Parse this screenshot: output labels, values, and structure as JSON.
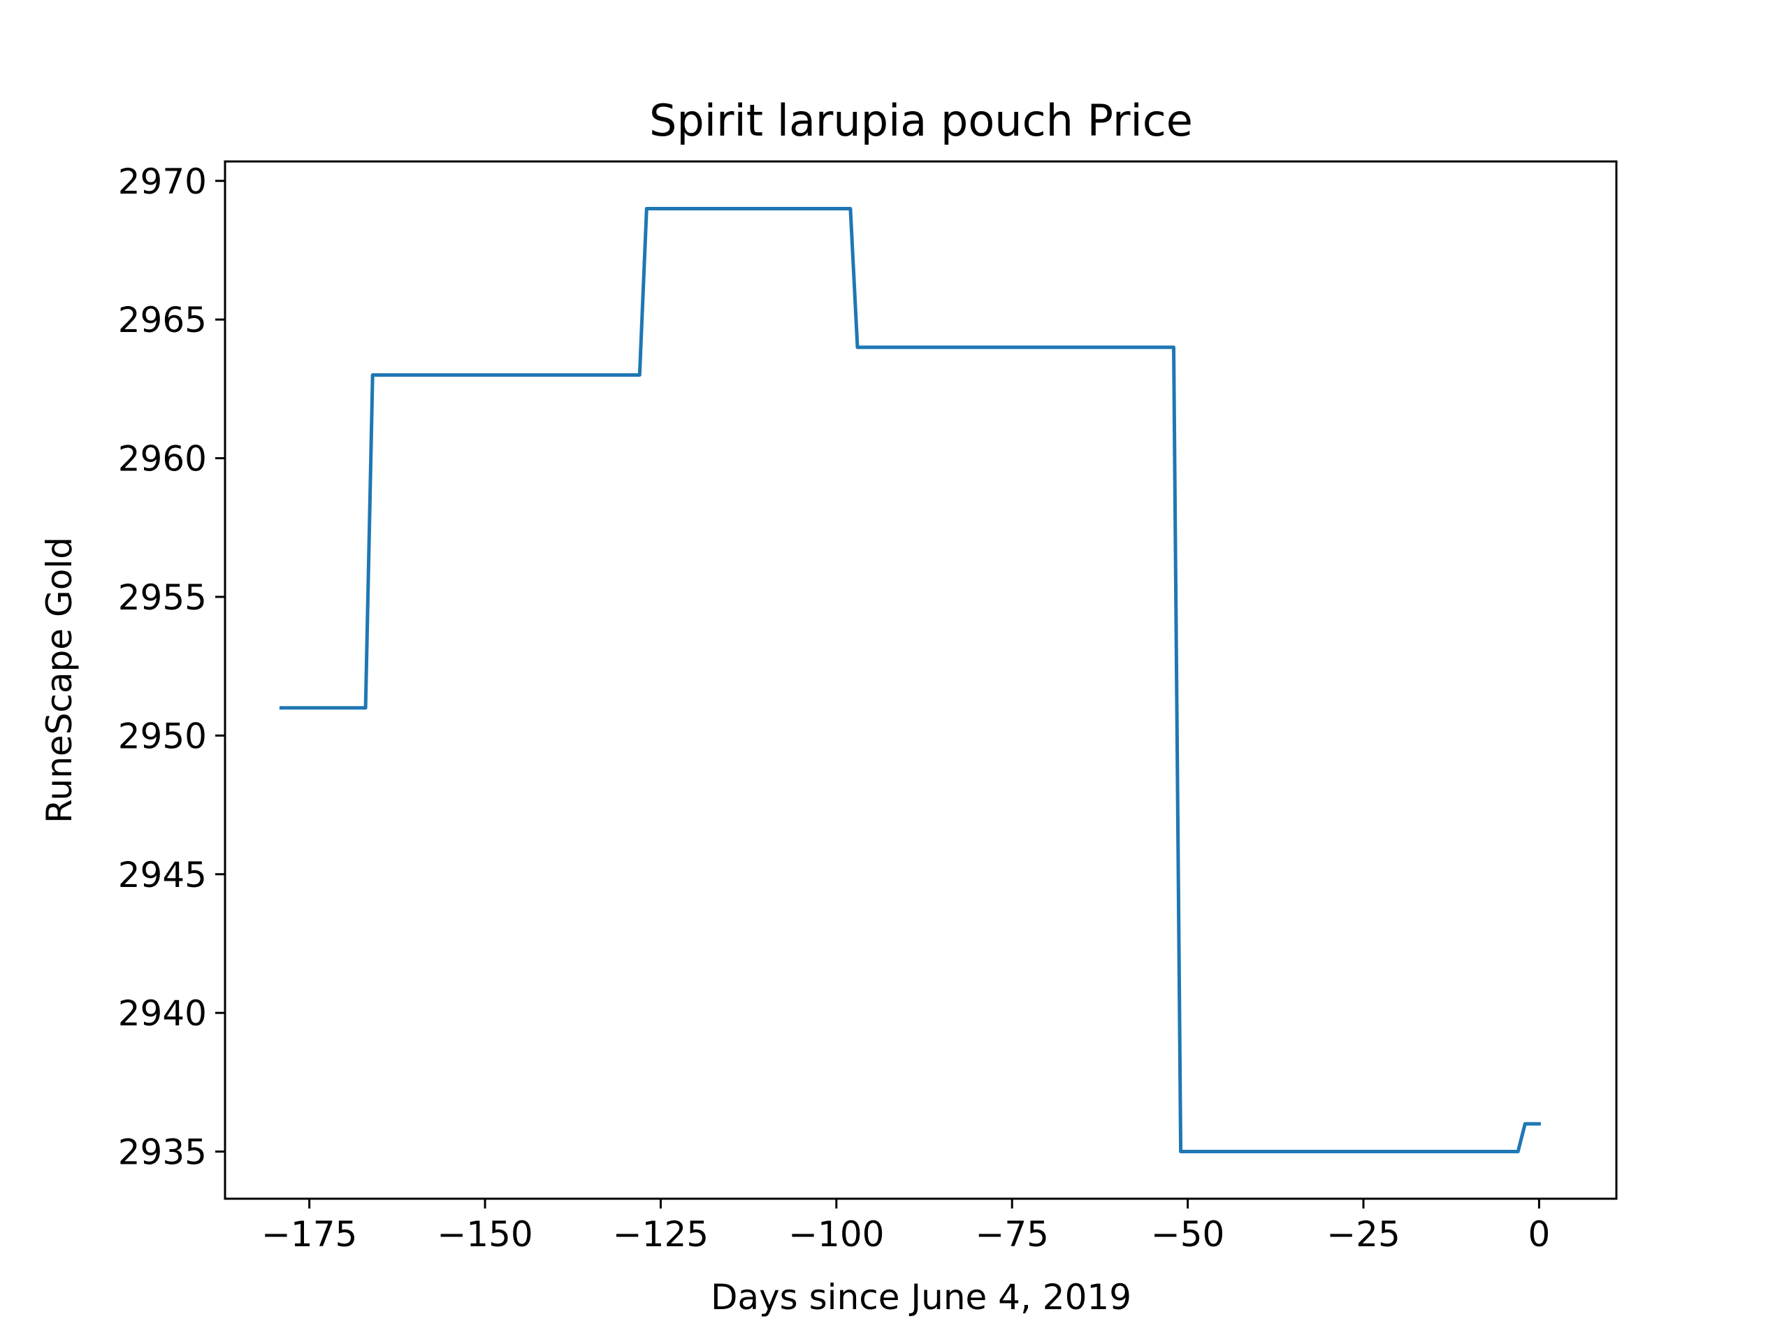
{
  "colors": {
    "series": "#1f77b4",
    "axes": "#000000",
    "background": "#ffffff"
  },
  "chart_data": {
    "type": "line",
    "title": "Spirit larupia pouch Price",
    "xlabel": "Days since June 4, 2019",
    "ylabel": "RuneScape Gold",
    "xlim": [
      -187,
      11
    ],
    "ylim": [
      2933.3,
      2970.7
    ],
    "xticks": [
      -175,
      -150,
      -125,
      -100,
      -75,
      -50,
      -25,
      0
    ],
    "xtick_labels": [
      "−175",
      "−150",
      "−125",
      "−100",
      "−75",
      "−50",
      "−25",
      "0"
    ],
    "yticks": [
      2935,
      2940,
      2945,
      2950,
      2955,
      2960,
      2965,
      2970
    ],
    "ytick_labels": [
      "2935",
      "2940",
      "2945",
      "2950",
      "2955",
      "2960",
      "2965",
      "2970"
    ],
    "grid": false,
    "legend": false,
    "series": [
      {
        "x": [
          -179,
          -167,
          -166,
          -128,
          -127,
          -98,
          -97,
          -52,
          -51,
          -3,
          -2,
          0
        ],
        "y": [
          2951,
          2951,
          2963,
          2963,
          2969,
          2969,
          2964,
          2964,
          2935,
          2935,
          2936,
          2936
        ]
      }
    ]
  }
}
